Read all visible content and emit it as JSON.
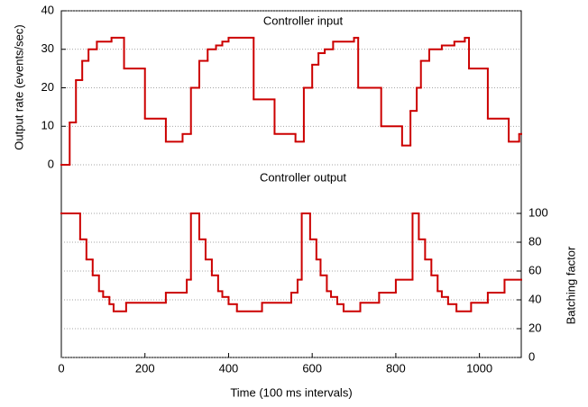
{
  "chart_data": {
    "type": "step",
    "xlabel": "Time (100 ms intervals)",
    "ylabel": "Output rate (events/sec)",
    "y2label": "Batching factor",
    "xlim": [
      0,
      1100
    ],
    "xticks": [
      0,
      200,
      400,
      600,
      800,
      1000
    ],
    "ylim": [
      0,
      40
    ],
    "yticks": [
      0,
      10,
      20,
      30,
      40
    ],
    "y2lim": [
      0,
      100
    ],
    "y2ticks": [
      0,
      20,
      40,
      60,
      80,
      100
    ],
    "grid": true,
    "series": [
      {
        "name": "Controller input",
        "color": "#cc0000",
        "x": [
          0,
          20,
          35,
          50,
          65,
          85,
          120,
          150,
          200,
          250,
          290,
          310,
          330,
          350,
          370,
          385,
          400,
          460,
          510,
          560,
          580,
          600,
          615,
          630,
          650,
          700,
          710,
          765,
          815,
          835,
          850,
          860,
          880,
          910,
          940,
          965,
          975,
          1020,
          1070,
          1095
        ],
        "values": [
          0,
          11,
          22,
          27,
          30,
          32,
          33,
          25,
          12,
          6,
          8,
          20,
          27,
          30,
          31,
          32,
          33,
          17,
          8,
          6,
          20,
          26,
          29,
          30,
          32,
          33,
          20,
          10,
          5,
          14,
          20,
          27,
          30,
          31,
          32,
          33,
          25,
          12,
          6,
          8
        ]
      },
      {
        "name": "Controller output",
        "color": "#cc0000",
        "axis": "y2",
        "x": [
          0,
          45,
          60,
          75,
          90,
          100,
          115,
          125,
          155,
          250,
          300,
          310,
          330,
          345,
          360,
          375,
          385,
          400,
          420,
          480,
          550,
          565,
          575,
          595,
          610,
          620,
          635,
          645,
          660,
          675,
          715,
          760,
          800,
          840,
          855,
          870,
          885,
          900,
          910,
          925,
          945,
          980,
          1020,
          1060
        ],
        "values": [
          100,
          82,
          68,
          57,
          46,
          42,
          37,
          32,
          38,
          45,
          54,
          100,
          82,
          68,
          57,
          46,
          42,
          37,
          32,
          38,
          45,
          54,
          100,
          82,
          68,
          57,
          46,
          42,
          37,
          32,
          38,
          45,
          54,
          100,
          82,
          68,
          57,
          46,
          42,
          37,
          32,
          38,
          45,
          54
        ]
      }
    ]
  }
}
